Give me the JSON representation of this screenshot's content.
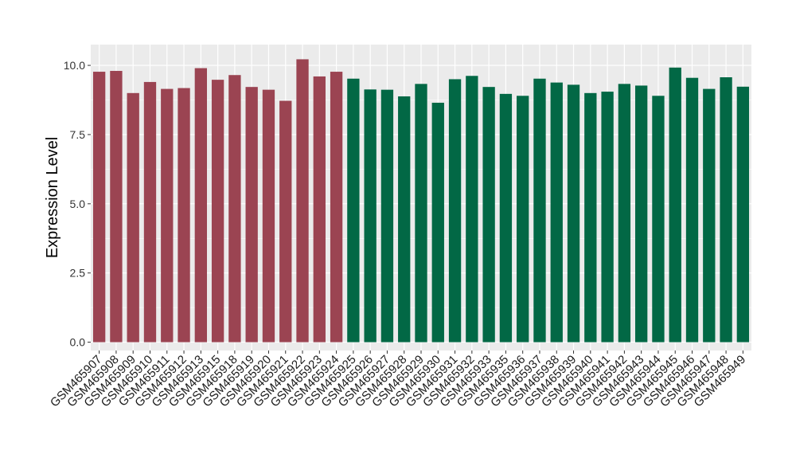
{
  "chart_data": {
    "type": "bar",
    "title": "",
    "xlabel": "",
    "ylabel": "Expression Level",
    "ylim": [
      -0.3,
      10.75
    ],
    "yticks": [
      0.0,
      2.5,
      5.0,
      7.5,
      10.0
    ],
    "ytick_labels": [
      "0.0",
      "2.5",
      "5.0",
      "7.5",
      "10.0"
    ],
    "grid": true,
    "legend": "none",
    "colors": {
      "group1": "#9b4452",
      "group2": "#026845",
      "panel": "#ebebeb",
      "grid": "#ffffff"
    },
    "categories": [
      "GSM465907",
      "GSM465908",
      "GSM465909",
      "GSM465910",
      "GSM465911",
      "GSM465912",
      "GSM465913",
      "GSM465915",
      "GSM465918",
      "GSM465919",
      "GSM465920",
      "GSM465921",
      "GSM465922",
      "GSM465923",
      "GSM465924",
      "GSM465925",
      "GSM465926",
      "GSM465927",
      "GSM465928",
      "GSM465929",
      "GSM465930",
      "GSM465931",
      "GSM465932",
      "GSM465933",
      "GSM465935",
      "GSM465936",
      "GSM465937",
      "GSM465938",
      "GSM465939",
      "GSM465940",
      "GSM465941",
      "GSM465942",
      "GSM465943",
      "GSM465944",
      "GSM465945",
      "GSM465946",
      "GSM465947",
      "GSM465948",
      "GSM465949"
    ],
    "values": [
      9.77,
      9.8,
      9.0,
      9.4,
      9.15,
      9.18,
      9.9,
      9.48,
      9.65,
      9.22,
      9.12,
      8.72,
      10.22,
      9.6,
      9.77,
      9.52,
      9.13,
      9.12,
      8.88,
      9.33,
      8.65,
      9.5,
      9.62,
      9.22,
      8.97,
      8.9,
      9.52,
      9.38,
      9.3,
      9.0,
      9.05,
      9.33,
      9.27,
      8.9,
      9.92,
      9.55,
      9.15,
      9.57,
      9.23
    ],
    "groups": [
      1,
      1,
      1,
      1,
      1,
      1,
      1,
      1,
      1,
      1,
      1,
      1,
      1,
      1,
      1,
      2,
      2,
      2,
      2,
      2,
      2,
      2,
      2,
      2,
      2,
      2,
      2,
      2,
      2,
      2,
      2,
      2,
      2,
      2,
      2,
      2,
      2,
      2,
      2
    ]
  }
}
